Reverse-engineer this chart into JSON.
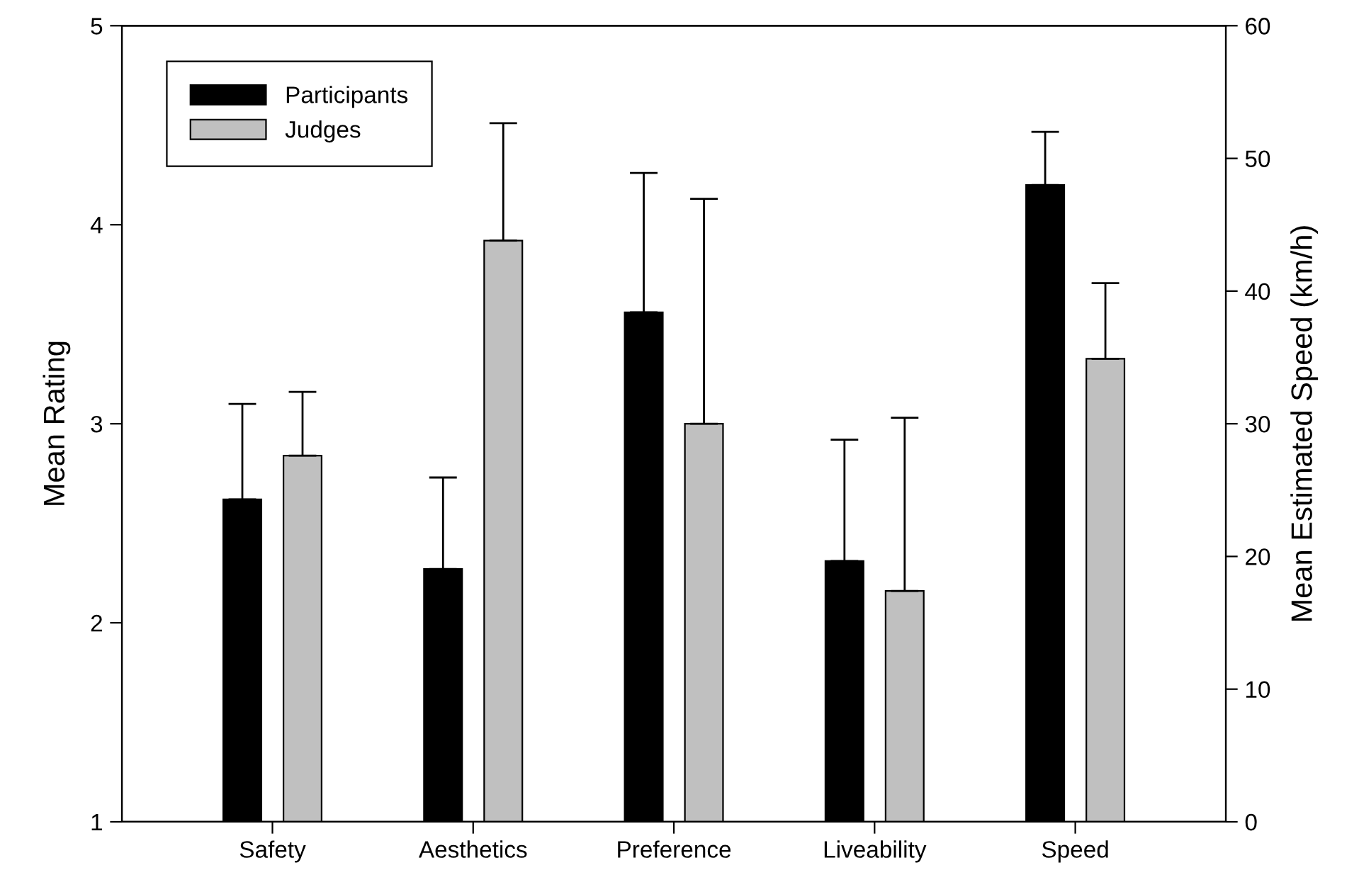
{
  "chart_data": {
    "type": "bar",
    "categories": [
      "Safety",
      "Aesthetics",
      "Preference",
      "Liveability",
      "Speed"
    ],
    "ylabel": "Mean Rating",
    "y2label": "Mean Estimated Speed (km/h)",
    "ylim": [
      1,
      5
    ],
    "yticks": [
      1,
      2,
      3,
      4,
      5
    ],
    "y2lim": [
      0,
      60
    ],
    "y2ticks": [
      0,
      10,
      20,
      30,
      40,
      50,
      60
    ],
    "legend": "top left",
    "grid": false,
    "series": [
      {
        "name": "Participants",
        "color": "#000000",
        "values": [
          2.62,
          2.27,
          3.56,
          2.31,
          null
        ],
        "errors": [
          [
            2.62,
            3.1
          ],
          [
            2.27,
            2.73
          ],
          [
            3.56,
            4.26
          ],
          [
            2.31,
            2.92
          ],
          null
        ]
      },
      {
        "name": "Judges",
        "color": "#c0c0c0",
        "values": [
          2.84,
          3.92,
          3.0,
          2.16,
          null
        ],
        "errors": [
          [
            2.84,
            3.16
          ],
          [
            3.92,
            4.51
          ],
          [
            3.0,
            4.13
          ],
          [
            2.16,
            3.03
          ],
          null
        ]
      },
      {
        "color": "#000000",
        "axis": "y2",
        "values": [
          null,
          null,
          null,
          null,
          48.0
        ],
        "errors": [
          null,
          null,
          null,
          null,
          [
            48.0,
            52.0
          ]
        ]
      },
      {
        "color": "#c0c0c0",
        "axis": "y2",
        "values": [
          null,
          null,
          null,
          null,
          34.9
        ],
        "errors": [
          null,
          null,
          null,
          null,
          [
            34.9,
            40.6
          ]
        ]
      }
    ]
  }
}
